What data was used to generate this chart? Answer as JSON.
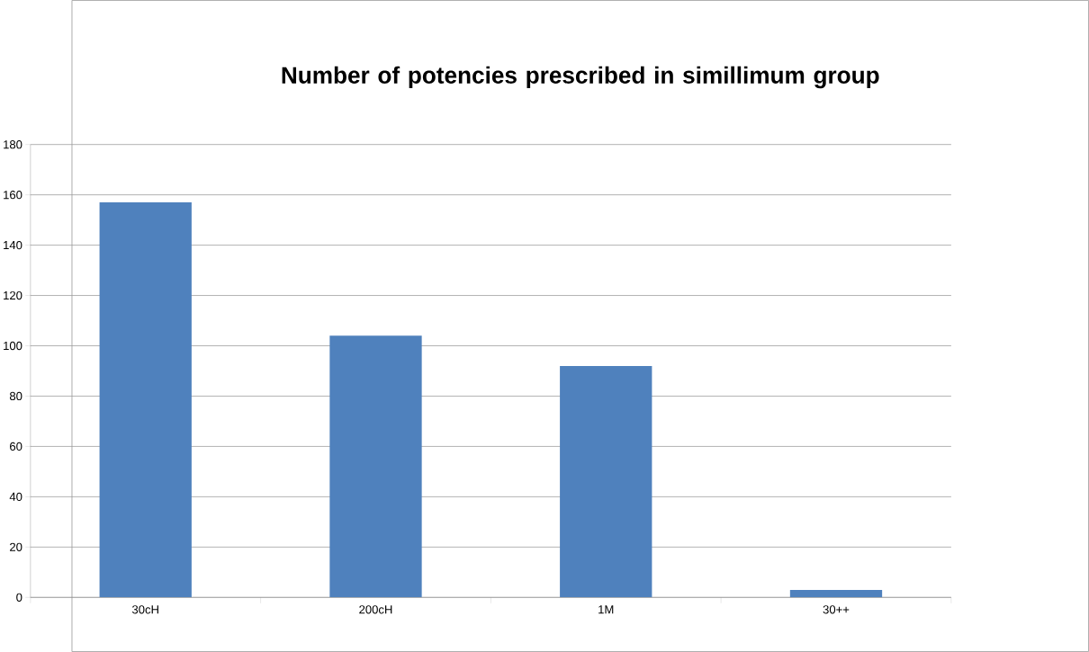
{
  "chart_data": {
    "type": "bar",
    "title": "Number of potencies prescribed in simillimum group",
    "categories": [
      "30cH",
      "200cH",
      "1M",
      "30++"
    ],
    "values": [
      157,
      104,
      92,
      3
    ],
    "color": "#4f81bd",
    "ylim": [
      0,
      180
    ],
    "yticks": [
      0,
      20,
      40,
      60,
      80,
      100,
      120,
      140,
      160,
      180
    ],
    "grid": "y"
  }
}
